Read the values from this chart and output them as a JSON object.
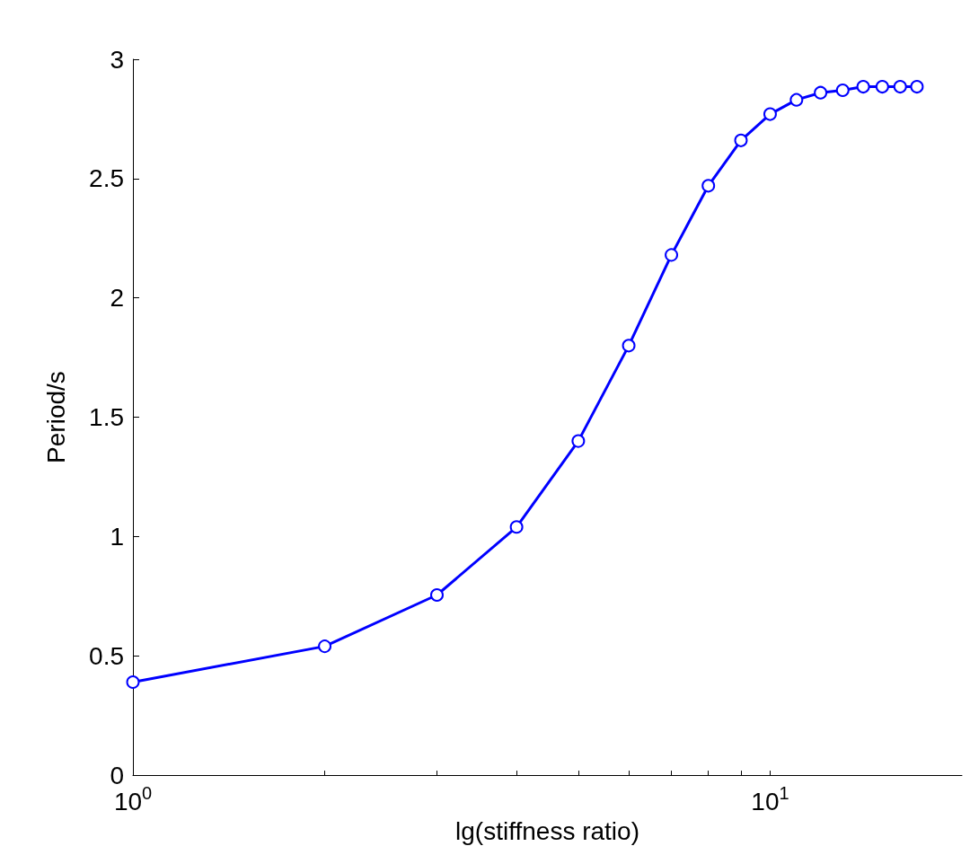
{
  "chart_data": {
    "type": "line",
    "xlabel": "lg(stiffness ratio)",
    "ylabel": "Period/s",
    "x": [
      1,
      2,
      3,
      4,
      5,
      6,
      7,
      8,
      9,
      10,
      11,
      12,
      13,
      14,
      15,
      16,
      17
    ],
    "series": [
      {
        "color": "#0000ff",
        "values": [
          0.39,
          0.54,
          0.755,
          1.04,
          1.4,
          1.8,
          2.18,
          2.47,
          2.66,
          2.77,
          2.83,
          2.86,
          2.87,
          2.885,
          2.885,
          2.885,
          2.885
        ]
      }
    ],
    "log": "x",
    "xlim": [
      1,
      20
    ],
    "xticks": [
      {
        "value": 1,
        "label": "10$^{0}$"
      },
      {
        "value": 2,
        "label": null
      },
      {
        "value": 3,
        "label": null
      },
      {
        "value": 4,
        "label": null
      },
      {
        "value": 5,
        "label": null
      },
      {
        "value": 6,
        "label": null
      },
      {
        "value": 7,
        "label": null
      },
      {
        "value": 8,
        "label": null
      },
      {
        "value": 9,
        "label": null
      },
      {
        "value": 10,
        "label": "10$^{1}$"
      }
    ],
    "ylim": [
      0,
      3
    ],
    "yticks": [
      0,
      0.5,
      1,
      1.5,
      2,
      2.5,
      3
    ],
    "grid": false,
    "marker": "circle",
    "line_style": "solid"
  }
}
